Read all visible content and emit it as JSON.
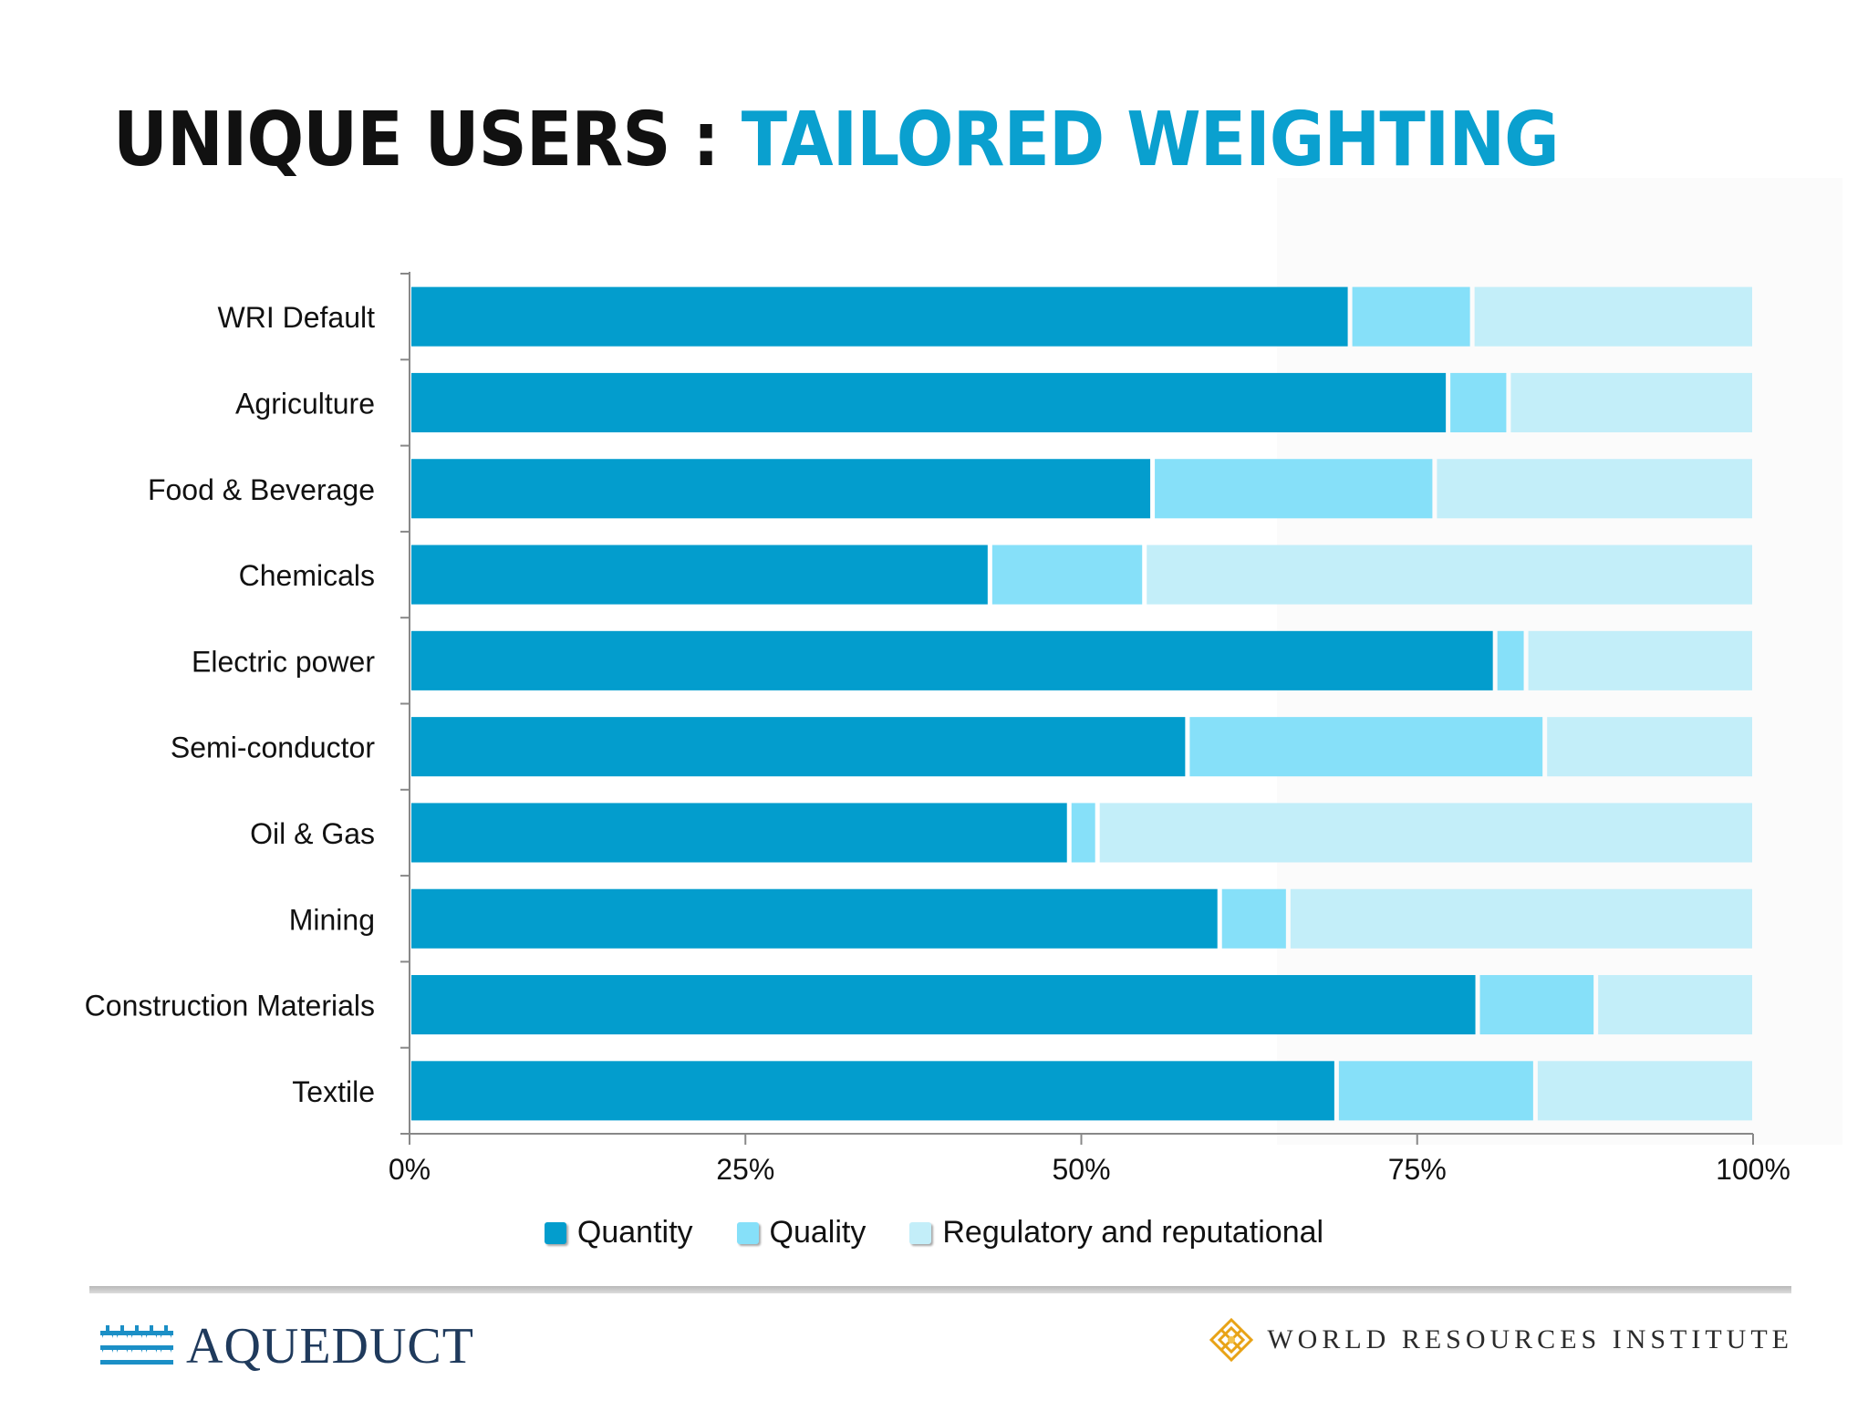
{
  "title": {
    "part1": "UNIQUE USERS : ",
    "part2": "TAILORED WEIGHTING"
  },
  "colors": {
    "title_black": "#111111",
    "title_blue": "#0aa0cf",
    "quantity": "#039dcd",
    "quality": "#86e0f9",
    "regulatory": "#c3eef9"
  },
  "chart_data": {
    "type": "bar",
    "orientation": "horizontal",
    "stacked": "percent",
    "categories": [
      "WRI Default",
      "Agriculture",
      "Food & Beverage",
      "Chemicals",
      "Electric power",
      "Semi-conductor",
      "Oil & Gas",
      "Mining",
      "Construction Materials",
      "Textile"
    ],
    "series": [
      {
        "name": "Quantity",
        "values": [
          70,
          77.3,
          55.3,
          43.2,
          80.8,
          57.9,
          49.1,
          60.3,
          79.5,
          69
        ]
      },
      {
        "name": "Quality",
        "values": [
          9.1,
          4.5,
          21,
          11.5,
          2.3,
          26.6,
          2.1,
          5.1,
          8.8,
          14.8
        ]
      },
      {
        "name": "Regulatory and reputational",
        "values": [
          20.9,
          18.2,
          23.7,
          45.3,
          16.9,
          15.5,
          48.8,
          34.6,
          11.7,
          16.2
        ]
      }
    ],
    "xticks": [
      "0%",
      "25%",
      "50%",
      "75%",
      "100%"
    ],
    "xlim": [
      0,
      100
    ],
    "legend": "bottom",
    "grid": false
  },
  "legend": {
    "items": [
      {
        "label": "Quantity"
      },
      {
        "label": "Quality"
      },
      {
        "label": "Regulatory and reputational"
      }
    ]
  },
  "footer": {
    "left_logo": "AQUEDUCT",
    "right_logo": "WORLD RESOURCES INSTITUTE"
  }
}
